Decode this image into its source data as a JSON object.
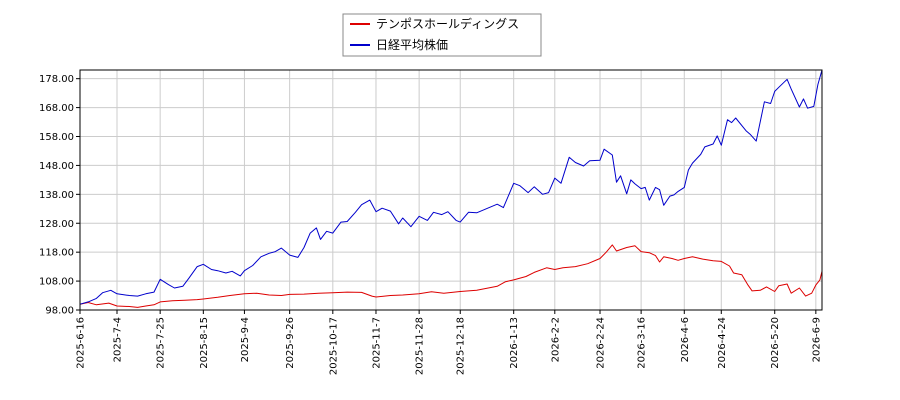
{
  "chart_data": {
    "type": "line",
    "title": "",
    "xlabel": "",
    "ylabel": "",
    "ylim": [
      98,
      181
    ],
    "yticks": [
      "98.00",
      "108.00",
      "118.00",
      "128.00",
      "138.00",
      "148.00",
      "158.00",
      "168.00",
      "178.00"
    ],
    "xlim": [
      "2025-06-16",
      "2026-06-12"
    ],
    "xticks": [
      "2025-6-16",
      "2025-7-4",
      "2025-7-25",
      "2025-8-15",
      "2025-9-4",
      "2025-9-26",
      "2025-10-17",
      "2025-11-7",
      "2025-11-28",
      "2025-12-18",
      "2026-1-13",
      "2026-2-2",
      "2026-2-24",
      "2026-3-16",
      "2026-4-6",
      "2026-4-24",
      "2026-5-20",
      "2026-6-9"
    ],
    "grid": true,
    "legend_position": "top-center",
    "series": [
      {
        "name": "テンポスホールディングス",
        "color": "#dd0000",
        "points": [
          [
            "2025-06-16",
            100.0
          ],
          [
            "2025-06-20",
            100.6
          ],
          [
            "2025-06-24",
            99.8
          ],
          [
            "2025-06-30",
            100.4
          ],
          [
            "2025-07-04",
            99.4
          ],
          [
            "2025-07-10",
            99.2
          ],
          [
            "2025-07-14",
            98.9
          ],
          [
            "2025-07-18",
            99.4
          ],
          [
            "2025-07-22",
            99.8
          ],
          [
            "2025-07-25",
            100.8
          ],
          [
            "2025-07-31",
            101.2
          ],
          [
            "2025-08-06",
            101.4
          ],
          [
            "2025-08-12",
            101.6
          ],
          [
            "2025-08-15",
            101.8
          ],
          [
            "2025-08-22",
            102.4
          ],
          [
            "2025-08-28",
            103.0
          ],
          [
            "2025-09-04",
            103.6
          ],
          [
            "2025-09-10",
            103.8
          ],
          [
            "2025-09-16",
            103.2
          ],
          [
            "2025-09-22",
            103.0
          ],
          [
            "2025-09-26",
            103.4
          ],
          [
            "2025-10-03",
            103.5
          ],
          [
            "2025-10-10",
            103.8
          ],
          [
            "2025-10-17",
            104.0
          ],
          [
            "2025-10-24",
            104.2
          ],
          [
            "2025-10-31",
            104.1
          ],
          [
            "2025-11-05",
            102.8
          ],
          [
            "2025-11-07",
            102.5
          ],
          [
            "2025-11-14",
            103.0
          ],
          [
            "2025-11-20",
            103.2
          ],
          [
            "2025-11-28",
            103.6
          ],
          [
            "2025-12-04",
            104.3
          ],
          [
            "2025-12-10",
            103.8
          ],
          [
            "2025-12-18",
            104.4
          ],
          [
            "2025-12-26",
            104.8
          ],
          [
            "2026-01-05",
            106.2
          ],
          [
            "2026-01-09",
            107.8
          ],
          [
            "2026-01-13",
            108.4
          ],
          [
            "2026-01-19",
            109.6
          ],
          [
            "2026-01-23",
            111.0
          ],
          [
            "2026-01-29",
            112.6
          ],
          [
            "2026-02-02",
            112.0
          ],
          [
            "2026-02-06",
            112.6
          ],
          [
            "2026-02-12",
            113.0
          ],
          [
            "2026-02-18",
            114.0
          ],
          [
            "2026-02-24",
            115.8
          ],
          [
            "2026-02-27",
            118.0
          ],
          [
            "2026-03-02",
            120.5
          ],
          [
            "2026-03-04",
            118.4
          ],
          [
            "2026-03-09",
            119.6
          ],
          [
            "2026-03-13",
            120.2
          ],
          [
            "2026-03-16",
            118.2
          ],
          [
            "2026-03-20",
            117.8
          ],
          [
            "2026-03-23",
            116.8
          ],
          [
            "2026-03-25",
            114.6
          ],
          [
            "2026-03-27",
            116.4
          ],
          [
            "2026-03-31",
            115.8
          ],
          [
            "2026-04-03",
            115.2
          ],
          [
            "2026-04-06",
            115.8
          ],
          [
            "2026-04-10",
            116.4
          ],
          [
            "2026-04-15",
            115.6
          ],
          [
            "2026-04-20",
            115.0
          ],
          [
            "2026-04-24",
            114.8
          ],
          [
            "2026-04-28",
            113.2
          ],
          [
            "2026-04-30",
            110.8
          ],
          [
            "2026-05-04",
            110.2
          ],
          [
            "2026-05-07",
            106.6
          ],
          [
            "2026-05-09",
            104.6
          ],
          [
            "2026-05-13",
            104.8
          ],
          [
            "2026-05-16",
            106.0
          ],
          [
            "2026-05-20",
            104.4
          ],
          [
            "2026-05-22",
            106.4
          ],
          [
            "2026-05-26",
            107.0
          ],
          [
            "2026-05-28",
            103.8
          ],
          [
            "2026-06-01",
            105.6
          ],
          [
            "2026-06-04",
            102.8
          ],
          [
            "2026-06-07",
            103.8
          ],
          [
            "2026-06-09",
            106.6
          ],
          [
            "2026-06-11",
            108.4
          ],
          [
            "2026-06-12",
            111.4
          ]
        ]
      },
      {
        "name": "日経平均株価",
        "color": "#0000cc",
        "points": [
          [
            "2025-06-16",
            100.0
          ],
          [
            "2025-06-20",
            100.8
          ],
          [
            "2025-06-24",
            102.0
          ],
          [
            "2025-06-27",
            104.0
          ],
          [
            "2025-07-01",
            104.8
          ],
          [
            "2025-07-04",
            103.6
          ],
          [
            "2025-07-10",
            103.0
          ],
          [
            "2025-07-14",
            102.8
          ],
          [
            "2025-07-18",
            103.6
          ],
          [
            "2025-07-22",
            104.2
          ],
          [
            "2025-07-25",
            108.6
          ],
          [
            "2025-07-29",
            106.8
          ],
          [
            "2025-08-01",
            105.6
          ],
          [
            "2025-08-05",
            106.2
          ],
          [
            "2025-08-08",
            109.0
          ],
          [
            "2025-08-12",
            113.0
          ],
          [
            "2025-08-15",
            113.8
          ],
          [
            "2025-08-19",
            112.0
          ],
          [
            "2025-08-22",
            111.6
          ],
          [
            "2025-08-26",
            110.8
          ],
          [
            "2025-08-29",
            111.4
          ],
          [
            "2025-09-02",
            109.8
          ],
          [
            "2025-09-04",
            111.6
          ],
          [
            "2025-09-08",
            113.4
          ],
          [
            "2025-09-12",
            116.4
          ],
          [
            "2025-09-16",
            117.6
          ],
          [
            "2025-09-19",
            118.2
          ],
          [
            "2025-09-22",
            119.4
          ],
          [
            "2025-09-26",
            117.0
          ],
          [
            "2025-09-30",
            116.2
          ],
          [
            "2025-10-03",
            119.6
          ],
          [
            "2025-10-06",
            124.6
          ],
          [
            "2025-10-09",
            126.4
          ],
          [
            "2025-10-11",
            122.4
          ],
          [
            "2025-10-14",
            125.2
          ],
          [
            "2025-10-17",
            124.6
          ],
          [
            "2025-10-21",
            128.4
          ],
          [
            "2025-10-24",
            128.6
          ],
          [
            "2025-10-28",
            131.8
          ],
          [
            "2025-10-31",
            134.4
          ],
          [
            "2025-11-04",
            136.0
          ],
          [
            "2025-11-07",
            132.0
          ],
          [
            "2025-11-10",
            133.2
          ],
          [
            "2025-11-14",
            132.2
          ],
          [
            "2025-11-18",
            127.8
          ],
          [
            "2025-11-20",
            129.8
          ],
          [
            "2025-11-24",
            126.8
          ],
          [
            "2025-11-28",
            130.4
          ],
          [
            "2025-12-02",
            129.0
          ],
          [
            "2025-12-05",
            131.8
          ],
          [
            "2025-12-09",
            131.0
          ],
          [
            "2025-12-12",
            132.0
          ],
          [
            "2025-12-16",
            129.0
          ],
          [
            "2025-12-18",
            128.4
          ],
          [
            "2025-12-22",
            131.8
          ],
          [
            "2025-12-26",
            131.6
          ],
          [
            "2026-01-05",
            134.6
          ],
          [
            "2026-01-08",
            133.4
          ],
          [
            "2026-01-13",
            141.8
          ],
          [
            "2026-01-16",
            141.0
          ],
          [
            "2026-01-20",
            138.6
          ],
          [
            "2026-01-23",
            140.6
          ],
          [
            "2026-01-27",
            138.0
          ],
          [
            "2026-01-30",
            138.6
          ],
          [
            "2026-02-02",
            143.6
          ],
          [
            "2026-02-05",
            141.8
          ],
          [
            "2026-02-09",
            150.8
          ],
          [
            "2026-02-12",
            149.0
          ],
          [
            "2026-02-16",
            147.8
          ],
          [
            "2026-02-19",
            149.6
          ],
          [
            "2026-02-24",
            149.8
          ],
          [
            "2026-02-26",
            153.6
          ],
          [
            "2026-03-02",
            151.6
          ],
          [
            "2026-03-04",
            142.2
          ],
          [
            "2026-03-06",
            144.4
          ],
          [
            "2026-03-09",
            138.2
          ],
          [
            "2026-03-11",
            143.0
          ],
          [
            "2026-03-13",
            141.6
          ],
          [
            "2026-03-16",
            140.0
          ],
          [
            "2026-03-18",
            140.4
          ],
          [
            "2026-03-20",
            136.0
          ],
          [
            "2026-03-23",
            140.4
          ],
          [
            "2026-03-25",
            139.6
          ],
          [
            "2026-03-27",
            134.2
          ],
          [
            "2026-03-30",
            137.4
          ],
          [
            "2026-04-01",
            137.8
          ],
          [
            "2026-04-03",
            139.0
          ],
          [
            "2026-04-06",
            140.4
          ],
          [
            "2026-04-08",
            146.4
          ],
          [
            "2026-04-10",
            148.8
          ],
          [
            "2026-04-14",
            151.8
          ],
          [
            "2026-04-16",
            154.4
          ],
          [
            "2026-04-20",
            155.4
          ],
          [
            "2026-04-22",
            158.2
          ],
          [
            "2026-04-24",
            155.0
          ],
          [
            "2026-04-27",
            163.8
          ],
          [
            "2026-04-29",
            162.8
          ],
          [
            "2026-05-01",
            164.4
          ],
          [
            "2026-05-06",
            160.0
          ],
          [
            "2026-05-08",
            158.8
          ],
          [
            "2026-05-11",
            156.4
          ],
          [
            "2026-05-13",
            163.2
          ],
          [
            "2026-05-15",
            170.0
          ],
          [
            "2026-05-18",
            169.4
          ],
          [
            "2026-05-20",
            173.6
          ],
          [
            "2026-05-22",
            175.0
          ],
          [
            "2026-05-26",
            177.8
          ],
          [
            "2026-05-28",
            174.4
          ],
          [
            "2026-06-01",
            168.2
          ],
          [
            "2026-06-03",
            171.0
          ],
          [
            "2026-06-05",
            167.8
          ],
          [
            "2026-06-08",
            168.4
          ],
          [
            "2026-06-10",
            176.0
          ],
          [
            "2026-06-12",
            181.0
          ]
        ]
      }
    ]
  }
}
